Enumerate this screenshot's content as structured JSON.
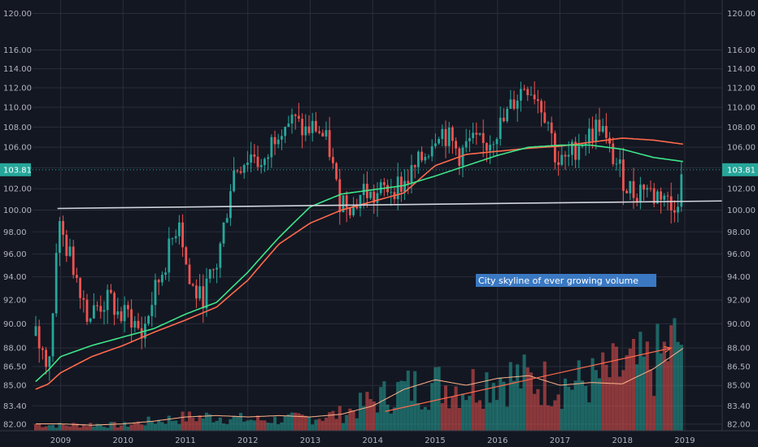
{
  "colors": {
    "background": "#131722",
    "grid": "#2a2e39",
    "axis_text": "#b2b5be",
    "up": "#26a69a",
    "down": "#ef5350",
    "ma_fast": "#ff6a4d",
    "ma_slow": "#3ee68a",
    "support_line": "#d1d4dc",
    "price_tag": "#26a69a",
    "annotation_bg": "#3a78c2",
    "annotation_arrow": "#ff6a4d",
    "volume_ma": "#ffb38a"
  },
  "chart_data": {
    "type": "candlestick",
    "scale": "log",
    "ylim": [
      81.5,
      121.5
    ],
    "xlim": [
      2008.55,
      2019.6
    ],
    "y_ticks": [
      "120.00",
      "116.00",
      "114.00",
      "112.00",
      "110.00",
      "108.00",
      "106.00",
      "104.00",
      "102.00",
      "100.00",
      "98.00",
      "96.00",
      "94.00",
      "92.00",
      "90.00",
      "88.00",
      "86.50",
      "85.00",
      "83.40",
      "82.00"
    ],
    "x_ticks": [
      "2009",
      "2010",
      "2011",
      "2012",
      "2013",
      "2014",
      "2015",
      "2016",
      "2017",
      "2018",
      "2019"
    ],
    "last_price": "103.81",
    "price_path": [
      [
        2008.6,
        89
      ],
      [
        2008.75,
        87
      ],
      [
        2008.85,
        88
      ],
      [
        2008.95,
        99
      ],
      [
        2009.1,
        96.5
      ],
      [
        2009.3,
        93.5
      ],
      [
        2009.45,
        90.5
      ],
      [
        2009.6,
        91.5
      ],
      [
        2009.8,
        92
      ],
      [
        2009.95,
        90.5
      ],
      [
        2010.1,
        90.8
      ],
      [
        2010.3,
        89
      ],
      [
        2010.5,
        92.5
      ],
      [
        2010.75,
        96.5
      ],
      [
        2010.9,
        99.5
      ],
      [
        2011.05,
        93.5
      ],
      [
        2011.25,
        92
      ],
      [
        2011.5,
        95
      ],
      [
        2011.65,
        99.5
      ],
      [
        2011.75,
        103.5
      ],
      [
        2011.9,
        104.5
      ],
      [
        2012.1,
        105.5
      ],
      [
        2012.25,
        103.5
      ],
      [
        2012.4,
        107
      ],
      [
        2012.55,
        108.5
      ],
      [
        2012.75,
        108.5
      ],
      [
        2012.9,
        107.5
      ],
      [
        2013.1,
        108
      ],
      [
        2013.3,
        106
      ],
      [
        2013.45,
        101
      ],
      [
        2013.6,
        101
      ],
      [
        2013.7,
        100.2
      ],
      [
        2013.85,
        102
      ],
      [
        2014.0,
        101
      ],
      [
        2014.2,
        102
      ],
      [
        2014.5,
        102.5
      ],
      [
        2014.7,
        104
      ],
      [
        2014.9,
        106
      ],
      [
        2015.05,
        108
      ],
      [
        2015.2,
        107
      ],
      [
        2015.4,
        105.2
      ],
      [
        2015.55,
        106.5
      ],
      [
        2015.8,
        106
      ],
      [
        2015.95,
        107.5
      ],
      [
        2016.1,
        108.5
      ],
      [
        2016.25,
        110.5
      ],
      [
        2016.45,
        112.5
      ],
      [
        2016.6,
        111.5
      ],
      [
        2016.8,
        109
      ],
      [
        2016.95,
        104.5
      ],
      [
        2017.1,
        104.5
      ],
      [
        2017.3,
        106.5
      ],
      [
        2017.45,
        107
      ],
      [
        2017.65,
        108.5
      ],
      [
        2017.75,
        106
      ],
      [
        2017.9,
        104.5
      ],
      [
        2018.05,
        102.5
      ],
      [
        2018.2,
        101.5
      ],
      [
        2018.35,
        102.5
      ],
      [
        2018.5,
        101.2
      ],
      [
        2018.65,
        101.8
      ],
      [
        2018.78,
        100
      ],
      [
        2018.9,
        101.5
      ],
      [
        2018.98,
        103.81
      ]
    ],
    "ma_fast_path": [
      [
        2008.6,
        84.7
      ],
      [
        2008.8,
        85.1
      ],
      [
        2009.0,
        86.0
      ],
      [
        2009.5,
        87.3
      ],
      [
        2010.0,
        88.2
      ],
      [
        2010.5,
        89.3
      ],
      [
        2011.0,
        90.3
      ],
      [
        2011.5,
        91.4
      ],
      [
        2012.0,
        93.7
      ],
      [
        2012.5,
        96.9
      ],
      [
        2013.0,
        98.8
      ],
      [
        2013.5,
        100.0
      ],
      [
        2014.0,
        100.8
      ],
      [
        2014.5,
        101.6
      ],
      [
        2015.0,
        104.2
      ],
      [
        2015.5,
        105.3
      ],
      [
        2016.0,
        105.6
      ],
      [
        2016.5,
        105.9
      ],
      [
        2017.0,
        106.1
      ],
      [
        2017.5,
        106.5
      ],
      [
        2018.0,
        106.9
      ],
      [
        2018.5,
        106.7
      ],
      [
        2018.98,
        106.3
      ]
    ],
    "ma_slow_path": [
      [
        2008.6,
        85.3
      ],
      [
        2008.8,
        86.2
      ],
      [
        2009.0,
        87.3
      ],
      [
        2009.5,
        88.2
      ],
      [
        2010.0,
        88.9
      ],
      [
        2010.5,
        89.6
      ],
      [
        2011.0,
        90.8
      ],
      [
        2011.5,
        91.8
      ],
      [
        2012.0,
        94.4
      ],
      [
        2012.5,
        97.5
      ],
      [
        2013.0,
        100.3
      ],
      [
        2013.5,
        101.5
      ],
      [
        2014.0,
        101.9
      ],
      [
        2014.5,
        102.3
      ],
      [
        2015.0,
        103.2
      ],
      [
        2015.5,
        104.2
      ],
      [
        2016.0,
        105.2
      ],
      [
        2016.5,
        106.0
      ],
      [
        2017.0,
        106.2
      ],
      [
        2017.5,
        106.2
      ],
      [
        2018.0,
        105.8
      ],
      [
        2018.5,
        105.0
      ],
      [
        2018.98,
        104.6
      ]
    ],
    "support_line": {
      "x": [
        2008.95,
        2019.6
      ],
      "y": [
        100.15,
        100.85
      ]
    },
    "volume": {
      "ymax_fraction": 0.32,
      "path": [
        [
          2008.6,
          0.06
        ],
        [
          2009.0,
          0.05
        ],
        [
          2009.5,
          0.06
        ],
        [
          2010.0,
          0.05
        ],
        [
          2010.5,
          0.09
        ],
        [
          2011.0,
          0.12
        ],
        [
          2011.5,
          0.13
        ],
        [
          2012.0,
          0.1
        ],
        [
          2012.5,
          0.1
        ],
        [
          2013.0,
          0.12
        ],
        [
          2013.5,
          0.15
        ],
        [
          2014.0,
          0.27
        ],
        [
          2014.5,
          0.38
        ],
        [
          2015.0,
          0.42
        ],
        [
          2015.5,
          0.4
        ],
        [
          2016.0,
          0.5
        ],
        [
          2016.5,
          0.46
        ],
        [
          2017.0,
          0.42
        ],
        [
          2017.5,
          0.45
        ],
        [
          2018.0,
          0.55
        ],
        [
          2018.5,
          0.6
        ],
        [
          2018.98,
          0.85
        ]
      ],
      "ma_path": [
        [
          2008.6,
          0.05
        ],
        [
          2009.0,
          0.05
        ],
        [
          2009.5,
          0.04
        ],
        [
          2010.0,
          0.05
        ],
        [
          2010.5,
          0.07
        ],
        [
          2011.0,
          0.1
        ],
        [
          2011.5,
          0.11
        ],
        [
          2012.0,
          0.1
        ],
        [
          2012.5,
          0.11
        ],
        [
          2013.0,
          0.1
        ],
        [
          2013.5,
          0.12
        ],
        [
          2014.0,
          0.18
        ],
        [
          2014.5,
          0.3
        ],
        [
          2015.0,
          0.37
        ],
        [
          2015.5,
          0.33
        ],
        [
          2016.0,
          0.38
        ],
        [
          2016.5,
          0.4
        ],
        [
          2017.0,
          0.33
        ],
        [
          2017.5,
          0.35
        ],
        [
          2018.0,
          0.34
        ],
        [
          2018.5,
          0.45
        ],
        [
          2018.98,
          0.6
        ]
      ]
    },
    "annotation": {
      "text": "City skyline of ever growing volume",
      "arrow_from": [
        2014.2,
        0.14
      ],
      "arrow_to": [
        2018.78,
        0.6
      ]
    }
  }
}
